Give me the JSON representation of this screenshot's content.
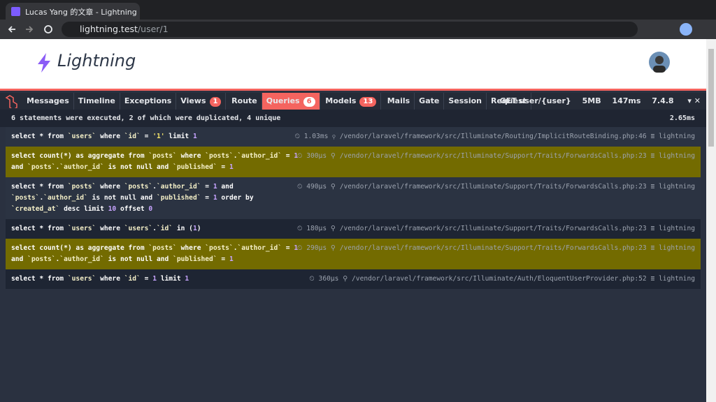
{
  "browser": {
    "tab_title": "Lucas Yang 的文章 - Lightning",
    "url_host": "lightning.test",
    "url_path": "/user/1"
  },
  "site": {
    "logo": "Lightning"
  },
  "debugbar": {
    "tabs": [
      {
        "label": "Messages"
      },
      {
        "label": "Timeline"
      },
      {
        "label": "Exceptions"
      },
      {
        "label": "Views",
        "badge": 1
      },
      {
        "label": "Route"
      },
      {
        "label": "Queries",
        "badge": 6,
        "active": true
      },
      {
        "label": "Models",
        "badge": 13
      },
      {
        "label": "Mails"
      },
      {
        "label": "Gate"
      },
      {
        "label": "Session"
      },
      {
        "label": "Request"
      }
    ],
    "status": {
      "route": "GET user/{user}",
      "memory": "5MB",
      "time": "147ms",
      "php": "7.4.8"
    },
    "summary": {
      "text": "6 statements were executed, 2 of which were duplicated, 4 unique",
      "total_time": "2.65ms"
    },
    "queries": [
      {
        "sql": "select * from `users` where `id` = '1' limit 1",
        "time": "1.03ms",
        "source": "/vendor/laravel/framework/src/Illuminate/Routing/ImplicitRouteBinding.php:46",
        "connection": "lightning",
        "duplicate": false
      },
      {
        "sql": "select count(*) as aggregate from `posts` where `posts`.`author_id` = 1 and `posts`.`author_id` is not null and `published` = 1",
        "time": "300μs",
        "source": "/vendor/laravel/framework/src/Illuminate/Support/Traits/ForwardsCalls.php:23",
        "connection": "lightning",
        "duplicate": true
      },
      {
        "sql": "select * from `posts` where `posts`.`author_id` = 1 and `posts`.`author_id` is not null and `published` = 1 order by `created_at` desc limit 10 offset 0",
        "time": "490μs",
        "source": "/vendor/laravel/framework/src/Illuminate/Support/Traits/ForwardsCalls.php:23",
        "connection": "lightning",
        "duplicate": false
      },
      {
        "sql": "select * from `users` where `users`.`id` in (1)",
        "time": "180μs",
        "source": "/vendor/laravel/framework/src/Illuminate/Support/Traits/ForwardsCalls.php:23",
        "connection": "lightning",
        "duplicate": false
      },
      {
        "sql": "select count(*) as aggregate from `posts` where `posts`.`author_id` = 1 and `posts`.`author_id` is not null and `published` = 1",
        "time": "290μs",
        "source": "/vendor/laravel/framework/src/Illuminate/Support/Traits/ForwardsCalls.php:23",
        "connection": "lightning",
        "duplicate": true
      },
      {
        "sql": "select * from `users` where `id` = 1 limit 1",
        "time": "360μs",
        "source": "/vendor/laravel/framework/src/Illuminate/Auth/EloquentUserProvider.php:52",
        "connection": "lightning",
        "duplicate": false
      }
    ]
  }
}
